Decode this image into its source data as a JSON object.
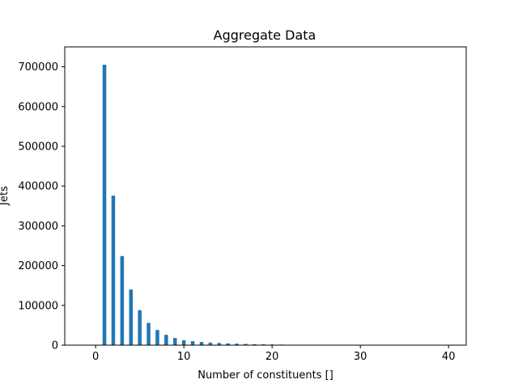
{
  "chart_data": {
    "type": "bar",
    "title": "Aggregate Data",
    "xlabel": "Number of constituents []",
    "ylabel": "Jets",
    "xlim": [
      -3.5,
      42
    ],
    "ylim": [
      0,
      750000
    ],
    "xticks": [
      0,
      10,
      20,
      30,
      40
    ],
    "yticks": [
      0,
      100000,
      200000,
      300000,
      400000,
      500000,
      600000,
      700000
    ],
    "grid": false,
    "legend": "none",
    "bar_color": "#1f77b4",
    "x": [
      1,
      2,
      3,
      4,
      5,
      6,
      7,
      8,
      9,
      10,
      11,
      12,
      13,
      14,
      15,
      16,
      17,
      18,
      19,
      20,
      21,
      22,
      23,
      24,
      25,
      26
    ],
    "values": [
      705000,
      376000,
      224000,
      140000,
      88000,
      56000,
      38000,
      26000,
      18000,
      12500,
      10000,
      8000,
      6500,
      5500,
      4500,
      3800,
      3200,
      2600,
      2100,
      1700,
      1400,
      1100,
      900,
      700,
      500,
      350
    ]
  }
}
